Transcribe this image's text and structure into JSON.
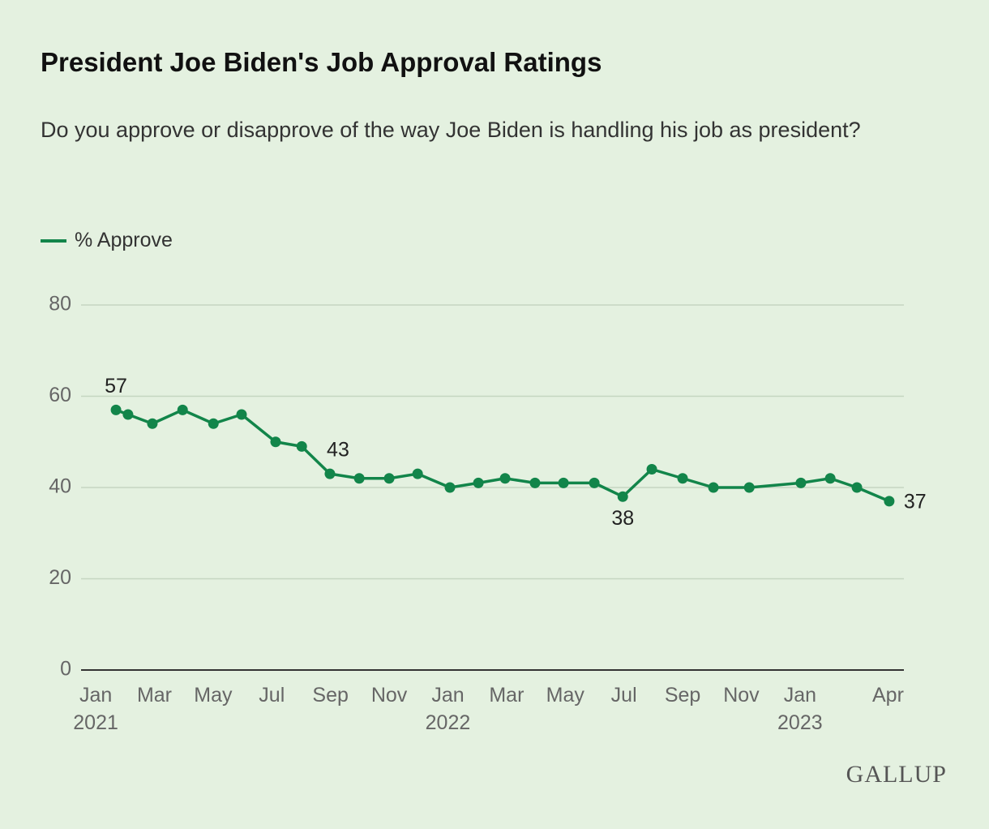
{
  "chart_data": {
    "type": "line",
    "title": "President Joe Biden's Job Approval Ratings",
    "subtitle": "Do you approve or disapprove of the way Joe Biden is handling his job as president?",
    "source": "GALLUP",
    "x": [
      0.69,
      1.1,
      1.93,
      2.96,
      4.01,
      4.97,
      6.13,
      7.02,
      7.98,
      8.98,
      10.0,
      10.97,
      12.07,
      13.04,
      13.95,
      14.97,
      15.94,
      16.99,
      17.96,
      18.95,
      20.0,
      21.05,
      22.27,
      24.03,
      25.03,
      25.94,
      27.04
    ],
    "series": [
      {
        "name": "% Approve",
        "color": "#12854a",
        "values": [
          57,
          56,
          54,
          57,
          54,
          56,
          50,
          49,
          43,
          42,
          42,
          43,
          40,
          41,
          42,
          41,
          41,
          41,
          38,
          44,
          42,
          40,
          40,
          41,
          42,
          40,
          37
        ],
        "value_labels": [
          "57",
          null,
          null,
          null,
          null,
          null,
          null,
          null,
          "43",
          null,
          null,
          null,
          null,
          null,
          null,
          null,
          null,
          null,
          "38",
          null,
          null,
          null,
          null,
          null,
          null,
          null,
          "37"
        ]
      }
    ],
    "xlim": [
      -0.5,
      27.54
    ],
    "xticks": [
      {
        "value": 0,
        "label": "Jan\n2021"
      },
      {
        "value": 2,
        "label": "Mar"
      },
      {
        "value": 4,
        "label": "May"
      },
      {
        "value": 6,
        "label": "Jul"
      },
      {
        "value": 8,
        "label": "Sep"
      },
      {
        "value": 10,
        "label": "Nov"
      },
      {
        "value": 12,
        "label": "Jan\n2022"
      },
      {
        "value": 14,
        "label": "Mar"
      },
      {
        "value": 16,
        "label": "May"
      },
      {
        "value": 18,
        "label": "Jul"
      },
      {
        "value": 20,
        "label": "Sep"
      },
      {
        "value": 22,
        "label": "Nov"
      },
      {
        "value": 24,
        "label": "Jan\n2023"
      },
      {
        "value": 27,
        "label": "Apr"
      }
    ],
    "ylim": [
      0,
      80
    ],
    "yticks": [
      0,
      20,
      40,
      60,
      80
    ],
    "grid": true
  }
}
